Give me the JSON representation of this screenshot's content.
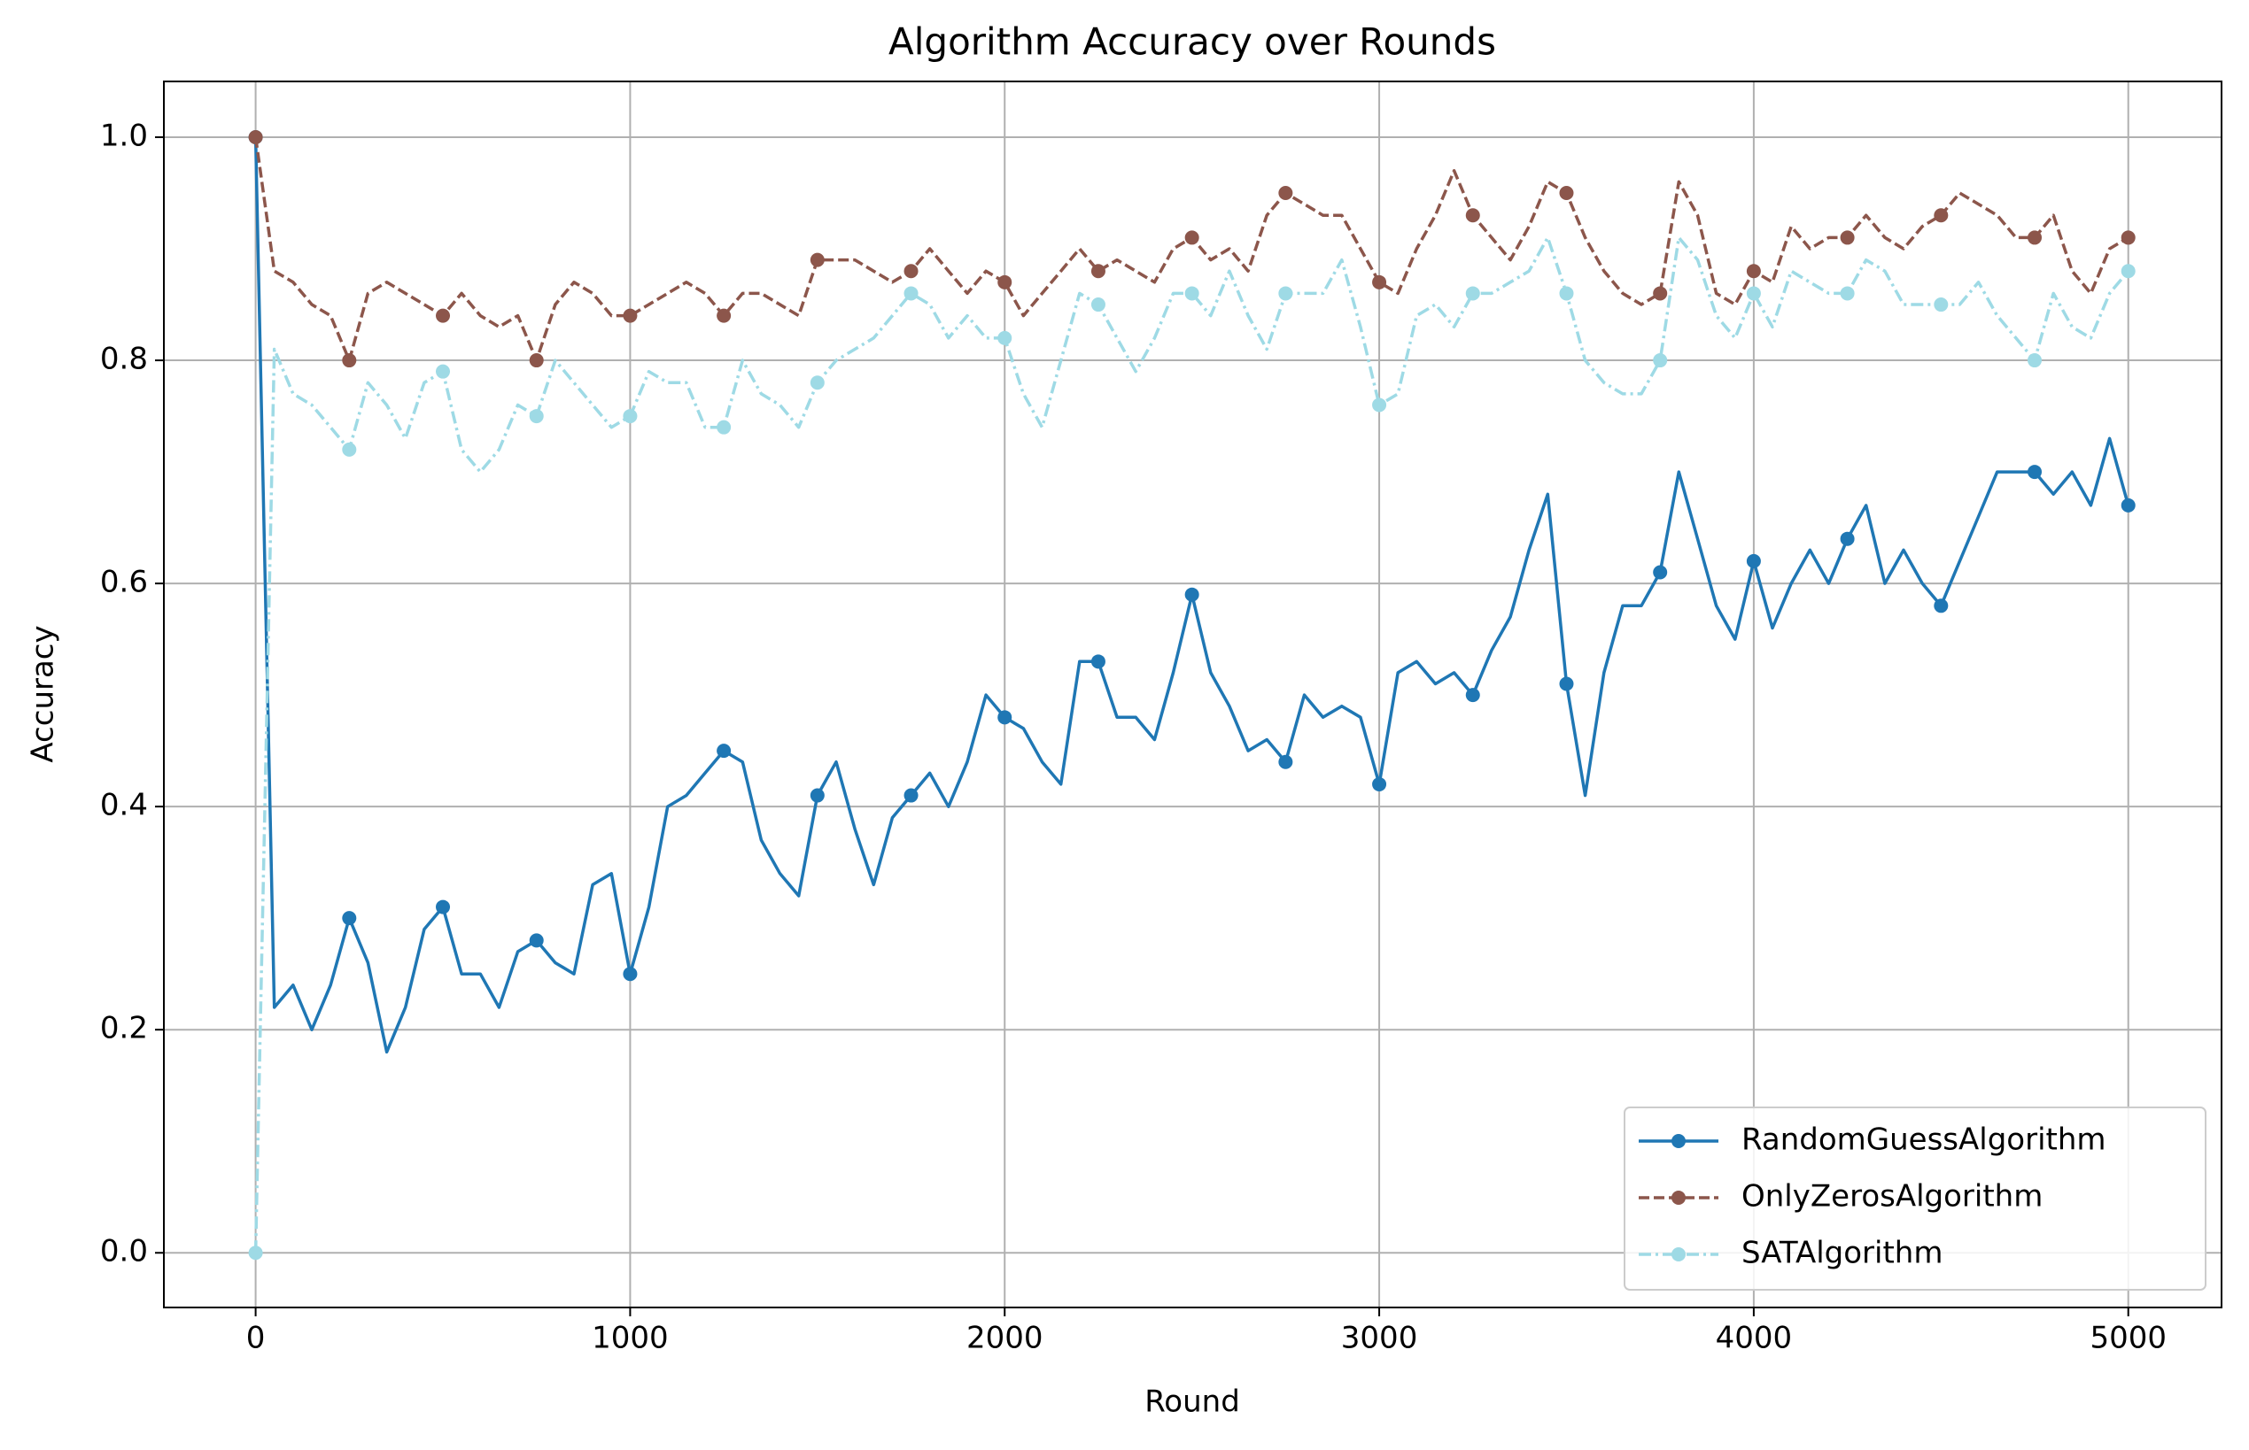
{
  "chart_data": {
    "type": "line",
    "title": "Algorithm Accuracy over Rounds",
    "xlabel": "Round",
    "ylabel": "Accuracy",
    "x": [
      0,
      50,
      100,
      150,
      200,
      250,
      300,
      350,
      400,
      450,
      500,
      550,
      600,
      650,
      700,
      750,
      800,
      850,
      900,
      950,
      1000,
      1050,
      1100,
      1150,
      1200,
      1250,
      1300,
      1350,
      1400,
      1450,
      1500,
      1550,
      1600,
      1650,
      1700,
      1750,
      1800,
      1850,
      1900,
      1950,
      2000,
      2050,
      2100,
      2150,
      2200,
      2250,
      2300,
      2350,
      2400,
      2450,
      2500,
      2550,
      2600,
      2650,
      2700,
      2750,
      2800,
      2850,
      2900,
      2950,
      3000,
      3050,
      3100,
      3150,
      3200,
      3250,
      3300,
      3350,
      3400,
      3450,
      3500,
      3550,
      3600,
      3650,
      3700,
      3750,
      3800,
      3850,
      3900,
      3950,
      4000,
      4050,
      4100,
      4150,
      4200,
      4250,
      4300,
      4350,
      4400,
      4450,
      4500,
      4550,
      4600,
      4650,
      4700,
      4750,
      4800,
      4850,
      4900,
      4950,
      5000
    ],
    "series": [
      {
        "name": "RandomGuessAlgorithm",
        "color": "#1f77b4",
        "linestyle": "solid",
        "values": [
          1.0,
          0.22,
          0.24,
          0.2,
          0.24,
          0.3,
          0.26,
          0.18,
          0.22,
          0.29,
          0.31,
          0.25,
          0.25,
          0.22,
          0.27,
          0.28,
          0.26,
          0.25,
          0.33,
          0.34,
          0.25,
          0.31,
          0.4,
          0.41,
          0.43,
          0.45,
          0.44,
          0.37,
          0.34,
          0.32,
          0.41,
          0.44,
          0.38,
          0.33,
          0.39,
          0.41,
          0.43,
          0.4,
          0.44,
          0.5,
          0.48,
          0.47,
          0.44,
          0.42,
          0.53,
          0.53,
          0.48,
          0.48,
          0.46,
          0.52,
          0.59,
          0.52,
          0.49,
          0.45,
          0.46,
          0.44,
          0.5,
          0.48,
          0.49,
          0.48,
          0.42,
          0.52,
          0.53,
          0.51,
          0.52,
          0.5,
          0.54,
          0.57,
          0.63,
          0.68,
          0.51,
          0.41,
          0.52,
          0.58,
          0.58,
          0.61,
          0.7,
          0.64,
          0.58,
          0.55,
          0.62,
          0.56,
          0.6,
          0.63,
          0.6,
          0.64,
          0.67,
          0.6,
          0.63,
          0.6,
          0.58,
          0.62,
          0.66,
          0.7,
          0.7,
          0.7,
          0.68,
          0.7,
          0.67,
          0.73,
          0.67
        ]
      },
      {
        "name": "OnlyZerosAlgorithm",
        "color": "#8c564b",
        "linestyle": "dashed",
        "values": [
          1.0,
          0.88,
          0.87,
          0.85,
          0.84,
          0.8,
          0.86,
          0.87,
          0.86,
          0.85,
          0.84,
          0.86,
          0.84,
          0.83,
          0.84,
          0.8,
          0.85,
          0.87,
          0.86,
          0.84,
          0.84,
          0.85,
          0.86,
          0.87,
          0.86,
          0.84,
          0.86,
          0.86,
          0.85,
          0.84,
          0.89,
          0.89,
          0.89,
          0.88,
          0.87,
          0.88,
          0.9,
          0.88,
          0.86,
          0.88,
          0.87,
          0.84,
          0.86,
          0.88,
          0.9,
          0.88,
          0.89,
          0.88,
          0.87,
          0.9,
          0.91,
          0.89,
          0.9,
          0.88,
          0.93,
          0.95,
          0.94,
          0.93,
          0.93,
          0.9,
          0.87,
          0.86,
          0.9,
          0.93,
          0.97,
          0.93,
          0.91,
          0.89,
          0.92,
          0.96,
          0.95,
          0.91,
          0.88,
          0.86,
          0.85,
          0.86,
          0.96,
          0.93,
          0.86,
          0.85,
          0.88,
          0.87,
          0.92,
          0.9,
          0.91,
          0.91,
          0.93,
          0.91,
          0.9,
          0.92,
          0.93,
          0.95,
          0.94,
          0.93,
          0.91,
          0.91,
          0.93,
          0.88,
          0.86,
          0.9,
          0.91
        ]
      },
      {
        "name": "SATAlgorithm",
        "color": "#9edae5",
        "linestyle": "dashdot",
        "values": [
          0.0,
          0.81,
          0.77,
          0.76,
          0.74,
          0.72,
          0.78,
          0.76,
          0.73,
          0.78,
          0.79,
          0.72,
          0.7,
          0.72,
          0.76,
          0.75,
          0.8,
          0.78,
          0.76,
          0.74,
          0.75,
          0.79,
          0.78,
          0.78,
          0.74,
          0.74,
          0.8,
          0.77,
          0.76,
          0.74,
          0.78,
          0.8,
          0.81,
          0.82,
          0.84,
          0.86,
          0.85,
          0.82,
          0.84,
          0.82,
          0.82,
          0.77,
          0.74,
          0.8,
          0.86,
          0.85,
          0.82,
          0.79,
          0.82,
          0.86,
          0.86,
          0.84,
          0.88,
          0.84,
          0.81,
          0.86,
          0.86,
          0.86,
          0.89,
          0.83,
          0.76,
          0.77,
          0.84,
          0.85,
          0.83,
          0.86,
          0.86,
          0.87,
          0.88,
          0.91,
          0.86,
          0.8,
          0.78,
          0.77,
          0.77,
          0.8,
          0.91,
          0.89,
          0.84,
          0.82,
          0.86,
          0.83,
          0.88,
          0.87,
          0.86,
          0.86,
          0.89,
          0.88,
          0.85,
          0.85,
          0.85,
          0.85,
          0.87,
          0.84,
          0.82,
          0.8,
          0.86,
          0.83,
          0.82,
          0.86,
          0.88
        ]
      }
    ],
    "xlim": [
      -245,
      5249
    ],
    "ylim": [
      -0.049,
      1.05
    ],
    "xticks": [
      0,
      1000,
      2000,
      3000,
      4000,
      5000
    ],
    "yticks": [
      {
        "value": 0,
        "label": "0.0"
      },
      {
        "value": 0.2,
        "label": "0.2"
      },
      {
        "value": 0.4,
        "label": "0.4"
      },
      {
        "value": 0.6,
        "label": "0.6"
      },
      {
        "value": 0.8,
        "label": "0.8"
      },
      {
        "value": 1,
        "label": "1.0"
      }
    ],
    "grid": true,
    "legend": "lower right"
  }
}
